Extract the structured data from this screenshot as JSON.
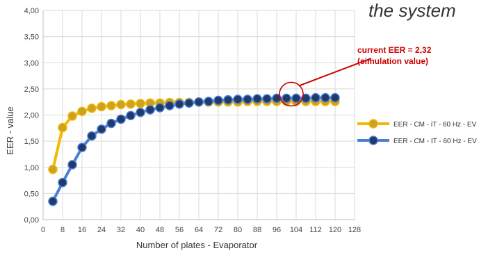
{
  "chart_data": {
    "type": "line",
    "title_fragment": "the system",
    "xlabel": "Number of plates - Evaporator",
    "ylabel": "EER - value",
    "xlim": [
      0,
      128
    ],
    "ylim": [
      0,
      4
    ],
    "x_ticks": [
      "0",
      "8",
      "16",
      "24",
      "32",
      "40",
      "48",
      "56",
      "64",
      "72",
      "80",
      "88",
      "96",
      "104",
      "112",
      "120",
      "128"
    ],
    "y_ticks": [
      "0,00",
      "0,50",
      "1,00",
      "1,50",
      "2,00",
      "2,50",
      "3,00",
      "3,50",
      "4,00"
    ],
    "grid": true,
    "legend_position": "right",
    "series": [
      {
        "name": "EER - CM - iT - 60 Hz - EV",
        "line_color": "#f5b800",
        "marker_color": "#c9a227",
        "x": [
          4,
          8,
          12,
          16,
          20,
          24,
          28,
          32,
          36,
          40,
          44,
          48,
          52,
          56,
          60,
          64,
          68,
          72,
          76,
          80,
          84,
          88,
          92,
          96,
          100,
          104,
          108,
          112,
          116,
          120
        ],
        "y": [
          0.96,
          1.76,
          1.98,
          2.07,
          2.13,
          2.16,
          2.18,
          2.2,
          2.21,
          2.22,
          2.23,
          2.23,
          2.24,
          2.24,
          2.24,
          2.25,
          2.25,
          2.25,
          2.25,
          2.25,
          2.26,
          2.26,
          2.26,
          2.26,
          2.26,
          2.26,
          2.26,
          2.26,
          2.26,
          2.26
        ]
      },
      {
        "name": "EER - CM - IT - 60 Hz - EV",
        "line_color": "#4a7fd4",
        "marker_color": "#1f3a6b",
        "x": [
          4,
          8,
          12,
          16,
          20,
          24,
          28,
          32,
          36,
          40,
          44,
          48,
          52,
          56,
          60,
          64,
          68,
          72,
          76,
          80,
          84,
          88,
          92,
          96,
          100,
          104,
          108,
          112,
          116,
          120
        ],
        "y": [
          0.35,
          0.71,
          1.05,
          1.38,
          1.6,
          1.73,
          1.84,
          1.92,
          1.99,
          2.05,
          2.1,
          2.14,
          2.18,
          2.21,
          2.23,
          2.25,
          2.26,
          2.28,
          2.29,
          2.3,
          2.3,
          2.31,
          2.31,
          2.32,
          2.32,
          2.32,
          2.32,
          2.33,
          2.33,
          2.33
        ]
      }
    ],
    "annotation": {
      "lines": [
        "current EER = 2,32",
        "(simulation value)"
      ],
      "color": "#cc0000",
      "point_x": 102,
      "point_y": 2.32
    }
  }
}
